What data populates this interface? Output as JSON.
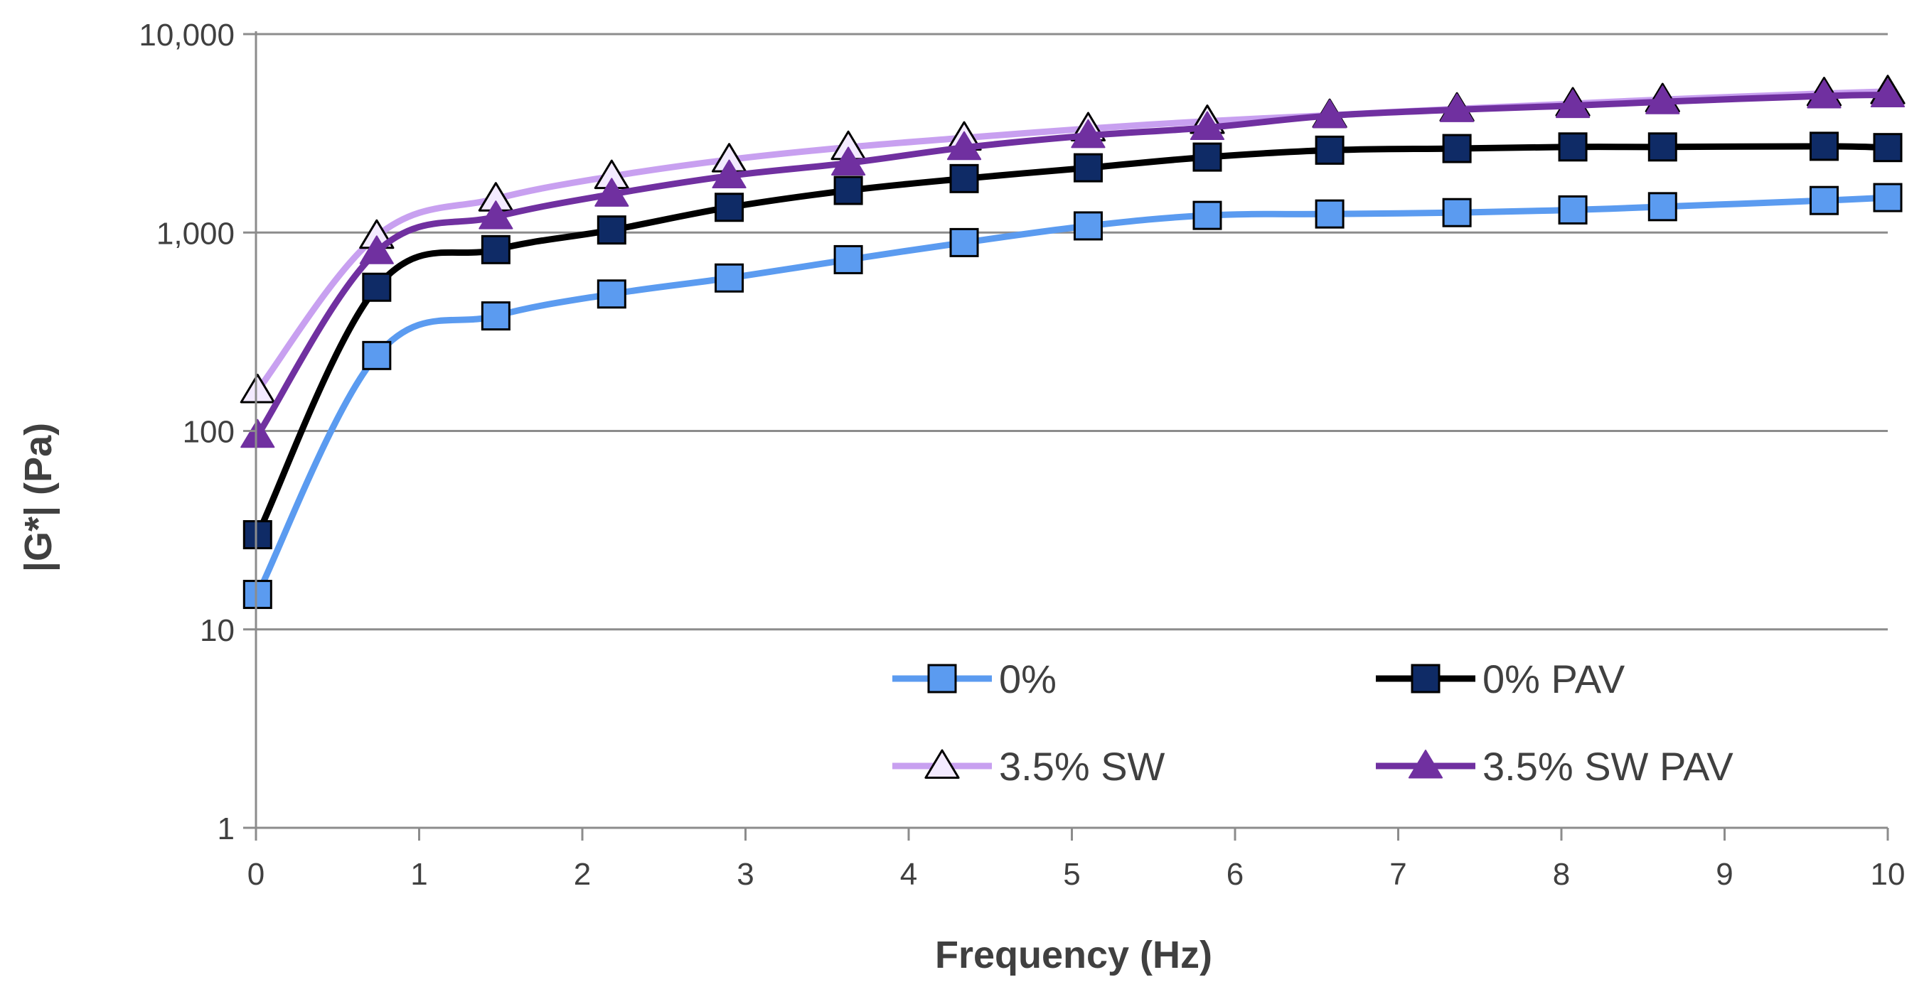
{
  "chart_data": {
    "type": "line",
    "title": "",
    "xlabel": "Frequency (Hz)",
    "ylabel": "|G*| (Pa)",
    "xlim": [
      0,
      10
    ],
    "ylim": [
      1,
      10000
    ],
    "yscale": "log",
    "x_ticks": [
      "0",
      "1",
      "2",
      "3",
      "4",
      "5",
      "6",
      "7",
      "8",
      "9",
      "10"
    ],
    "y_ticks": [
      "1",
      "10",
      "100",
      "1,000",
      "10,000"
    ],
    "grid": "horizontal",
    "legend_position": "bottom-right",
    "x": [
      0.01,
      0.74,
      1.47,
      2.18,
      2.9,
      3.63,
      4.34,
      5.1,
      5.83,
      6.58,
      7.36,
      8.07,
      8.62,
      9.61,
      10.0
    ],
    "series": [
      {
        "name": "0%",
        "color": "#5b9bf0",
        "marker": "square",
        "values": [
          15,
          240,
          380,
          490,
          590,
          730,
          890,
          1080,
          1220,
          1240,
          1260,
          1300,
          1350,
          1450,
          1500
        ]
      },
      {
        "name": "0% PAV",
        "color": "#000000",
        "marker_color": "#0f2b66",
        "marker": "square",
        "values": [
          30,
          530,
          820,
          1030,
          1340,
          1630,
          1870,
          2120,
          2400,
          2600,
          2650,
          2700,
          2700,
          2720,
          2680
        ]
      },
      {
        "name": "3.5% SW",
        "color": "#c8a0f0",
        "marker": "triangle-open",
        "values": [
          160,
          960,
          1480,
          1920,
          2330,
          2690,
          3000,
          3340,
          3640,
          3900,
          4200,
          4460,
          4680,
          5020,
          5140
        ]
      },
      {
        "name": "3.5% SW PAV",
        "color": "#7030a0",
        "marker": "triangle-filled",
        "values": [
          95,
          800,
          1200,
          1560,
          1930,
          2240,
          2680,
          3080,
          3380,
          3880,
          4160,
          4360,
          4560,
          4880,
          4940
        ]
      }
    ]
  }
}
